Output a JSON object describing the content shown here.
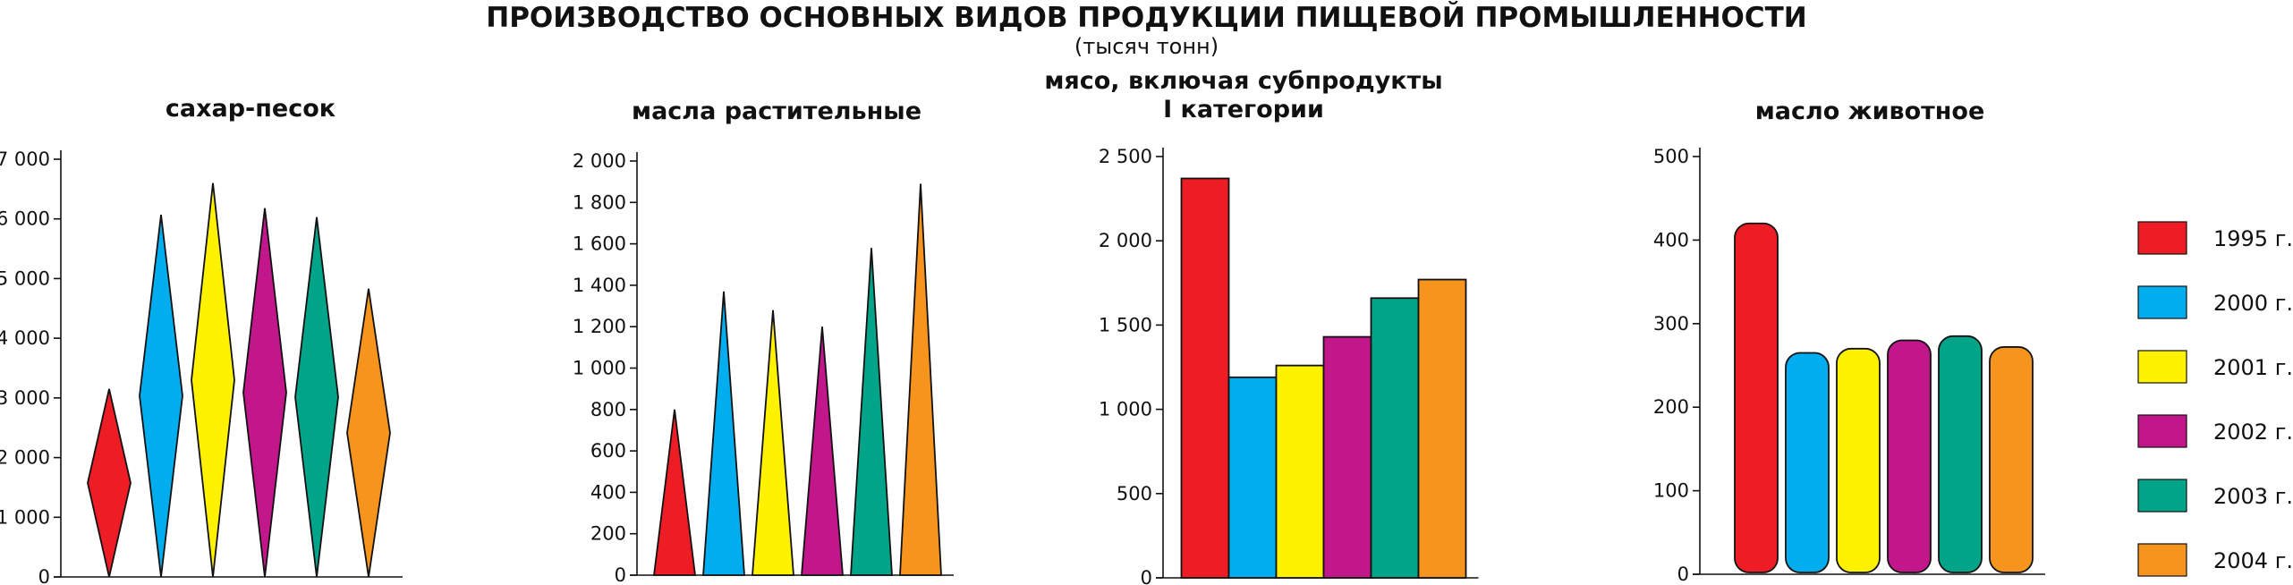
{
  "header": {
    "title": "ПРОИЗВОДСТВО ОСНОВНЫХ ВИДОВ ПРОДУКЦИИ ПИЩЕВОЙ ПРОМЫШЛЕННОСТИ",
    "subtitle": "(тысяч тонн)"
  },
  "colors": {
    "1995": "#ee1c25",
    "2000": "#00aeef",
    "2001": "#fff200",
    "2002": "#c2178b",
    "2003": "#00a488",
    "2004": "#f7941d"
  },
  "chart_data": [
    {
      "type": "bar",
      "title": [
        "сахар-песок"
      ],
      "mark_shape": "diamond",
      "categories": [
        "1995 г.",
        "2000 г.",
        "2001 г.",
        "2002 г.",
        "2003 г.",
        "2004 г."
      ],
      "values": [
        3150,
        6070,
        6600,
        6180,
        6030,
        4830
      ],
      "ylim": [
        0,
        7000
      ],
      "yticks": [
        0,
        1000,
        2000,
        3000,
        4000,
        5000,
        6000,
        7000
      ],
      "ytick_labels": [
        "0",
        "1 000",
        "2 000",
        "3 000",
        "4 000",
        "5 000",
        "6 000",
        "7 000"
      ]
    },
    {
      "type": "bar",
      "title": [
        "масла растительные"
      ],
      "mark_shape": "triangle",
      "categories": [
        "1995 г.",
        "2000 г.",
        "2001 г.",
        "2002 г.",
        "2003 г.",
        "2004 г."
      ],
      "values": [
        800,
        1370,
        1280,
        1200,
        1580,
        1890
      ],
      "ylim": [
        0,
        2000
      ],
      "yticks": [
        0,
        200,
        400,
        600,
        800,
        1000,
        1200,
        1400,
        1600,
        1800,
        2000
      ],
      "ytick_labels": [
        "0",
        "200",
        "400",
        "600",
        "800",
        "1 000",
        "1 200",
        "1 400",
        "1 600",
        "1 800",
        "2 000"
      ]
    },
    {
      "type": "bar",
      "title": [
        "мясо, включая субпродукты",
        "I категории"
      ],
      "mark_shape": "rect",
      "categories": [
        "1995 г.",
        "2000 г.",
        "2001 г.",
        "2002 г.",
        "2003 г.",
        "2004 г."
      ],
      "values": [
        2370,
        1190,
        1260,
        1430,
        1660,
        1770
      ],
      "ylim": [
        0,
        2500
      ],
      "yticks": [
        0,
        500,
        1000,
        1500,
        2000,
        2500
      ],
      "ytick_labels": [
        "0",
        "500",
        "1 000",
        "1 500",
        "2 000",
        "2 500"
      ]
    },
    {
      "type": "bar",
      "title": [
        "масло животное"
      ],
      "mark_shape": "rounded",
      "categories": [
        "1995 г.",
        "2000 г.",
        "2001 г.",
        "2002 г.",
        "2003 г.",
        "2004 г."
      ],
      "values": [
        420,
        265,
        270,
        280,
        285,
        272
      ],
      "ylim": [
        0,
        500
      ],
      "yticks": [
        0,
        100,
        200,
        300,
        400,
        500
      ],
      "ytick_labels": [
        "0",
        "100",
        "200",
        "300",
        "400",
        "500"
      ]
    }
  ],
  "legend": {
    "items": [
      {
        "key": "1995",
        "label": "1995 г."
      },
      {
        "key": "2000",
        "label": "2000 г."
      },
      {
        "key": "2001",
        "label": "2001 г."
      },
      {
        "key": "2002",
        "label": "2002 г."
      },
      {
        "key": "2003",
        "label": "2003 г."
      },
      {
        "key": "2004",
        "label": "2004 г."
      }
    ]
  }
}
